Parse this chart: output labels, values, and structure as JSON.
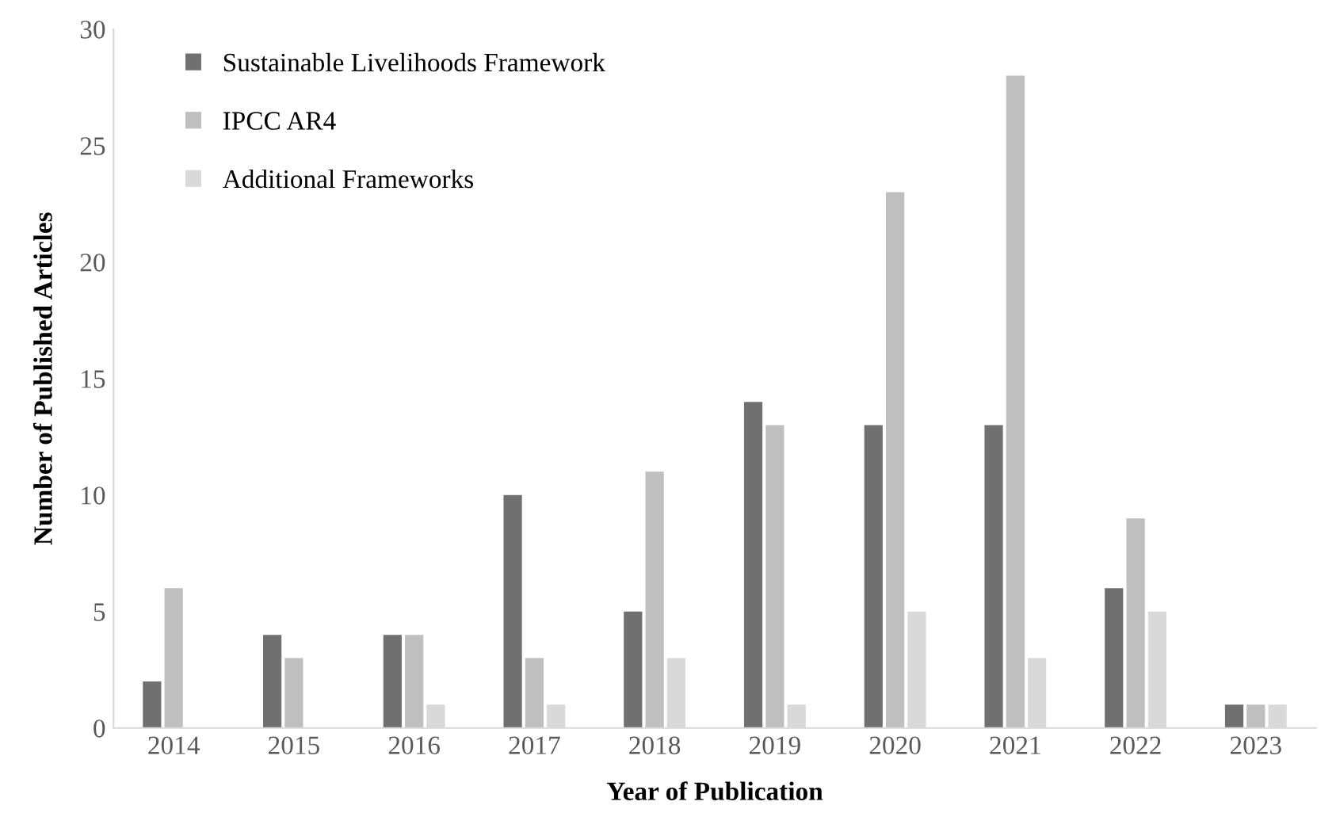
{
  "chart_data": {
    "type": "bar",
    "xlabel": "Year of Publication",
    "ylabel": "Number of Published Articles",
    "categories": [
      "2014",
      "2015",
      "2016",
      "2017",
      "2018",
      "2019",
      "2020",
      "2021",
      "2022",
      "2023"
    ],
    "series": [
      {
        "name": "Sustainable Livelihoods Framework",
        "color": "#707070",
        "values": [
          2,
          4,
          4,
          10,
          5,
          14,
          13,
          13,
          6,
          1
        ]
      },
      {
        "name": "IPCC AR4",
        "color": "#bfbfbf",
        "values": [
          6,
          3,
          4,
          3,
          11,
          13,
          23,
          28,
          9,
          1
        ]
      },
      {
        "name": "Additional Frameworks",
        "color": "#d9d9d9",
        "values": [
          0,
          0,
          1,
          1,
          3,
          1,
          5,
          3,
          5,
          1
        ]
      }
    ],
    "ylim": [
      0,
      30
    ],
    "yticks": [
      0,
      5,
      10,
      15,
      20,
      25,
      30
    ],
    "grid": false,
    "legend": "top left"
  }
}
